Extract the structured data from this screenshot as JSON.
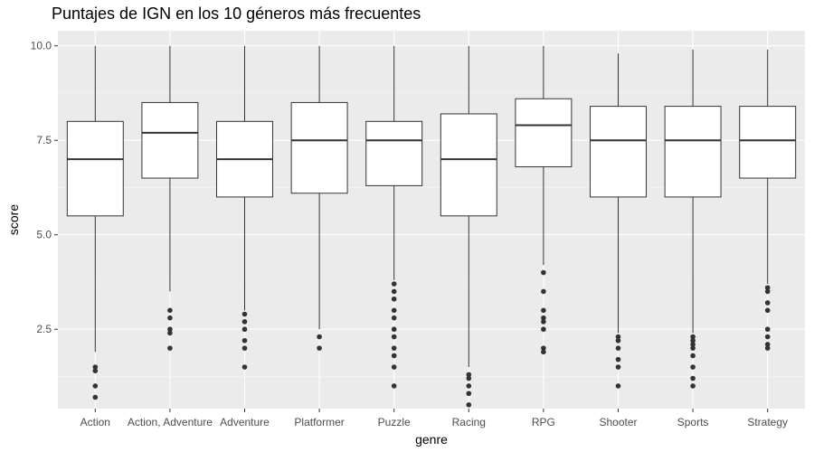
{
  "chart_data": {
    "type": "boxplot",
    "title": "Puntajes de IGN en los 10 géneros más frecuentes",
    "xlabel": "genre",
    "ylabel": "score",
    "ylim": [
      0.4,
      10.4
    ],
    "yticks": [
      2.5,
      5.0,
      7.5,
      10.0
    ],
    "ytick_labels": [
      "2.5",
      "5.0",
      "7.5",
      "10.0"
    ],
    "grid": true,
    "categories": [
      "Action",
      "Action, Adventure",
      "Adventure",
      "Platformer",
      "Puzzle",
      "Racing",
      "RPG",
      "Shooter",
      "Sports",
      "Strategy"
    ],
    "boxes": [
      {
        "genre": "Action",
        "whisker_low": 1.9,
        "q1": 5.5,
        "median": 7.0,
        "q3": 8.0,
        "whisker_high": 10.0,
        "outliers": [
          1.5,
          1.4,
          1.0,
          0.7
        ]
      },
      {
        "genre": "Action, Adventure",
        "whisker_low": 3.5,
        "q1": 6.5,
        "median": 7.7,
        "q3": 8.5,
        "whisker_high": 10.0,
        "outliers": [
          3.0,
          2.8,
          2.5,
          2.4,
          2.0
        ]
      },
      {
        "genre": "Adventure",
        "whisker_low": 3.0,
        "q1": 6.0,
        "median": 7.0,
        "q3": 8.0,
        "whisker_high": 10.0,
        "outliers": [
          2.9,
          2.7,
          2.5,
          2.2,
          2.0,
          1.5
        ]
      },
      {
        "genre": "Platformer",
        "whisker_low": 2.5,
        "q1": 6.1,
        "median": 7.5,
        "q3": 8.5,
        "whisker_high": 10.0,
        "outliers": [
          2.3,
          2.0
        ]
      },
      {
        "genre": "Puzzle",
        "whisker_low": 3.8,
        "q1": 6.3,
        "median": 7.5,
        "q3": 8.0,
        "whisker_high": 10.0,
        "outliers": [
          3.7,
          3.5,
          3.3,
          3.0,
          2.8,
          2.5,
          2.3,
          2.0,
          1.8,
          1.5,
          1.0
        ]
      },
      {
        "genre": "Racing",
        "whisker_low": 1.5,
        "q1": 5.5,
        "median": 7.0,
        "q3": 8.2,
        "whisker_high": 10.0,
        "outliers": [
          1.3,
          1.2,
          1.0,
          0.8,
          0.5
        ]
      },
      {
        "genre": "RPG",
        "whisker_low": 4.2,
        "q1": 6.8,
        "median": 7.9,
        "q3": 8.6,
        "whisker_high": 10.0,
        "outliers": [
          4.0,
          3.5,
          3.0,
          2.8,
          2.7,
          2.5,
          2.0,
          1.9
        ]
      },
      {
        "genre": "Shooter",
        "whisker_low": 2.4,
        "q1": 6.0,
        "median": 7.5,
        "q3": 8.4,
        "whisker_high": 9.8,
        "outliers": [
          2.3,
          2.2,
          2.0,
          1.7,
          1.5,
          1.0
        ]
      },
      {
        "genre": "Sports",
        "whisker_low": 2.4,
        "q1": 6.0,
        "median": 7.5,
        "q3": 8.4,
        "whisker_high": 9.9,
        "outliers": [
          2.3,
          2.2,
          2.1,
          2.0,
          1.8,
          1.5,
          1.2,
          1.0
        ]
      },
      {
        "genre": "Strategy",
        "whisker_low": 3.7,
        "q1": 6.5,
        "median": 7.5,
        "q3": 8.4,
        "whisker_high": 9.9,
        "outliers": [
          3.6,
          3.5,
          3.2,
          3.0,
          2.5,
          2.3,
          2.1,
          2.0
        ]
      }
    ],
    "colors": {
      "panel_background": "#ebebeb",
      "grid_major": "#ffffff",
      "grid_minor": "#f5f5f5",
      "box_fill": "#ffffff",
      "box_line": "#333333",
      "outlier": "#333333"
    }
  }
}
